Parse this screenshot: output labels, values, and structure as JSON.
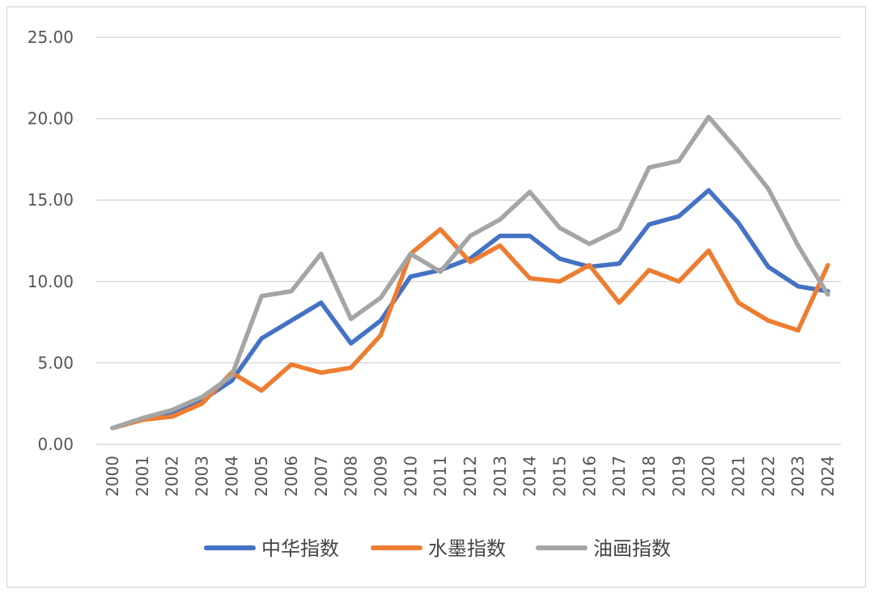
{
  "chart_data": {
    "type": "line",
    "title": "",
    "xlabel": "",
    "ylabel": "",
    "ylim": [
      0,
      25
    ],
    "yticks": [
      "0.00",
      "5.00",
      "10.00",
      "15.00",
      "20.00",
      "25.00"
    ],
    "categories": [
      "2000",
      "2001",
      "2002",
      "2003",
      "2004",
      "2005",
      "2006",
      "2007",
      "2008",
      "2009",
      "2010",
      "2011",
      "2012",
      "2013",
      "2014",
      "2015",
      "2016",
      "2017",
      "2018",
      "2019",
      "2020",
      "2021",
      "2022",
      "2023",
      "2024"
    ],
    "grid": true,
    "legend_position": "bottom",
    "series": [
      {
        "name": "中华指数",
        "color": "#4472C4",
        "values": [
          1.0,
          1.5,
          2.0,
          2.7,
          3.9,
          6.5,
          7.6,
          8.7,
          6.2,
          7.6,
          10.3,
          10.7,
          11.4,
          12.8,
          12.8,
          11.4,
          10.9,
          11.1,
          13.5,
          14.0,
          15.6,
          13.6,
          10.9,
          9.7,
          9.4
        ]
      },
      {
        "name": "水墨指数",
        "color": "#ED7D31",
        "values": [
          1.0,
          1.5,
          1.7,
          2.5,
          4.4,
          3.3,
          4.9,
          4.4,
          4.7,
          6.7,
          11.7,
          13.2,
          11.2,
          12.2,
          10.2,
          10.0,
          11.0,
          8.7,
          10.7,
          10.0,
          11.9,
          8.7,
          7.6,
          7.0,
          11.0
        ]
      },
      {
        "name": "油画指数",
        "color": "#A5A5A5",
        "values": [
          1.0,
          1.6,
          2.1,
          2.9,
          4.2,
          9.1,
          9.4,
          11.7,
          7.7,
          9.0,
          11.7,
          10.6,
          12.8,
          13.8,
          15.5,
          13.3,
          12.3,
          13.2,
          17.0,
          17.4,
          20.1,
          18.0,
          15.7,
          12.2,
          9.2
        ]
      }
    ]
  }
}
